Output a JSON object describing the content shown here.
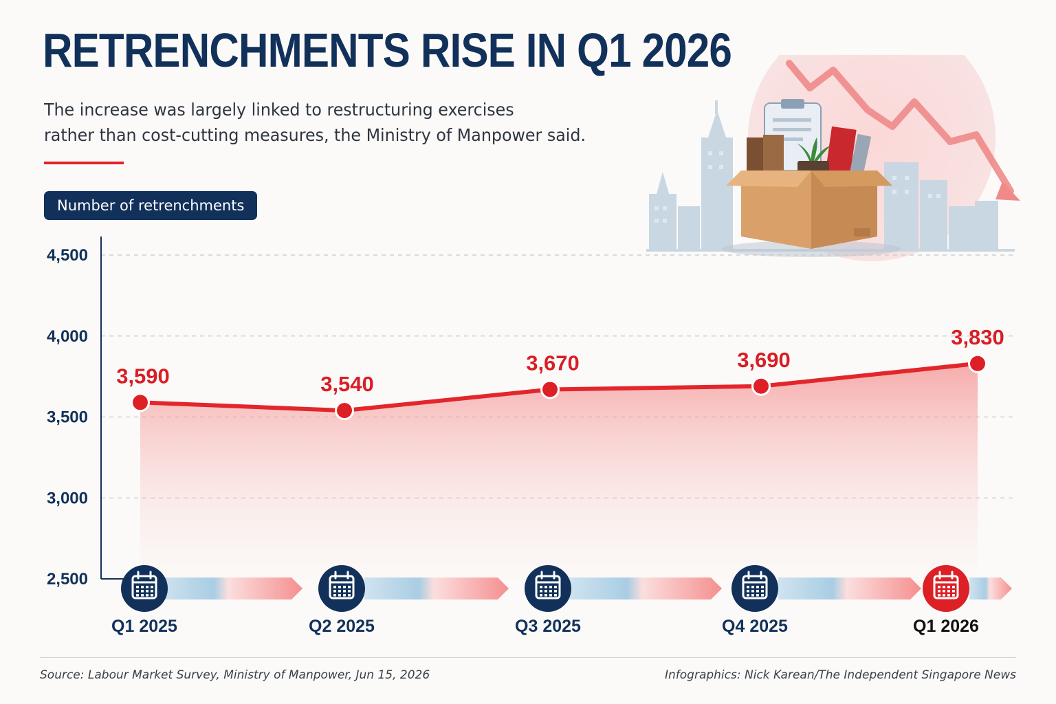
{
  "header": {
    "title": "RETRENCHMENTS RISE IN Q1 2026",
    "subtitle_line1": "The increase was largely linked to restructuring exercises",
    "subtitle_line2": "rather than cost-cutting measures, the Ministry of Manpower said."
  },
  "chart_data": {
    "type": "area",
    "series_label": "Number of retrenchments",
    "categories": [
      "Q1 2025",
      "Q2 2025",
      "Q3 2025",
      "Q4 2025",
      "Q1 2026"
    ],
    "series": [
      {
        "values": [
          3590,
          3540,
          3670,
          3690,
          3830
        ]
      }
    ],
    "value_labels": [
      "3,590",
      "3,540",
      "3,670",
      "3,690",
      "3,830"
    ],
    "y_ticks": [
      4500,
      4000,
      3500,
      3000,
      2500
    ],
    "y_tick_labels": [
      "4,500",
      "4,000",
      "3,500",
      "3,000",
      "2,500"
    ],
    "ylim": [
      2500,
      4500
    ],
    "grid": true,
    "highlight_category": "Q1 2026"
  },
  "colors": {
    "navy": "#12315a",
    "accent_red": "#e0242b",
    "line_red": "#e3262c",
    "label_red": "#d81e25",
    "timeline_blue": "#a9cde3",
    "timeline_pink": "#f7a3a3"
  },
  "icons": {
    "timeline_marker": "calendar-icon",
    "illustration": "moving-box-downtrend-icon"
  },
  "footer": {
    "source": "Source: Labour Market Survey, Ministry of Manpower, Jun 15, 2026",
    "credit": "Infographics: Nick Karean/The Independent Singapore News"
  }
}
